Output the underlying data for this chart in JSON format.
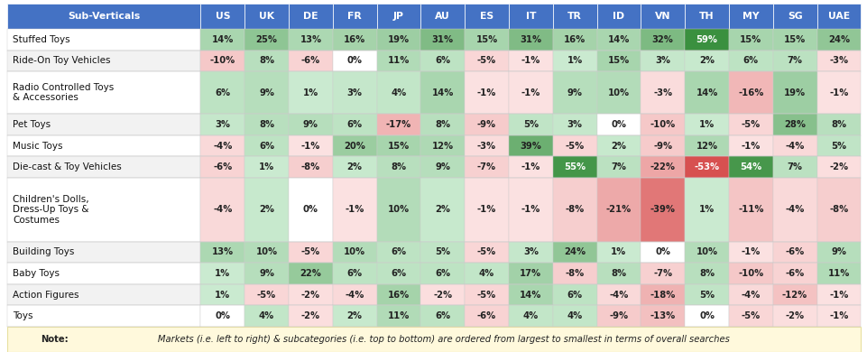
{
  "columns": [
    "Sub-Verticals",
    "US",
    "UK",
    "DE",
    "FR",
    "JP",
    "AU",
    "ES",
    "IT",
    "TR",
    "ID",
    "VN",
    "TH",
    "MY",
    "SG",
    "UAE"
  ],
  "rows": [
    [
      "Stuffed Toys",
      14,
      25,
      13,
      16,
      19,
      31,
      15,
      31,
      16,
      14,
      32,
      59,
      15,
      15,
      24
    ],
    [
      "Ride-On Toy Vehicles",
      -10,
      8,
      -6,
      0,
      11,
      6,
      -5,
      -1,
      1,
      15,
      3,
      2,
      6,
      7,
      -3
    ],
    [
      "Radio Controlled Toys\n& Accessories",
      6,
      9,
      1,
      3,
      4,
      14,
      -1,
      -1,
      9,
      10,
      -3,
      14,
      -16,
      19,
      -1
    ],
    [
      "Pet Toys",
      3,
      8,
      9,
      6,
      -17,
      8,
      -9,
      5,
      3,
      0,
      -10,
      1,
      -5,
      28,
      8
    ],
    [
      "Music Toys",
      -4,
      6,
      -1,
      20,
      15,
      12,
      -3,
      39,
      -5,
      2,
      -9,
      12,
      -1,
      -4,
      5
    ],
    [
      "Die-cast & Toy Vehicles",
      -6,
      1,
      -8,
      2,
      8,
      9,
      -7,
      -1,
      55,
      7,
      -22,
      -53,
      54,
      7,
      -2
    ],
    [
      "Children's Dolls,\nDress-Up Toys &\nCostumes",
      -4,
      2,
      0,
      -1,
      10,
      2,
      -1,
      -1,
      -8,
      -21,
      -39,
      1,
      -11,
      -4,
      -8
    ],
    [
      "Building Toys",
      13,
      10,
      -5,
      10,
      6,
      5,
      -5,
      3,
      24,
      1,
      0,
      10,
      -1,
      -6,
      9
    ],
    [
      "Baby Toys",
      1,
      9,
      22,
      6,
      6,
      6,
      4,
      17,
      -8,
      8,
      -7,
      8,
      -10,
      -6,
      11
    ],
    [
      "Action Figures",
      1,
      -5,
      -2,
      -4,
      16,
      -2,
      -5,
      14,
      6,
      -4,
      -18,
      5,
      -4,
      -12,
      -1
    ],
    [
      "Toys",
      0,
      4,
      -2,
      2,
      11,
      6,
      -6,
      4,
      4,
      -9,
      -13,
      0,
      -5,
      -2,
      -1
    ]
  ],
  "header_bg": "#4472C4",
  "header_text": "#FFFFFF",
  "note_italic": "Markets (i.e. left to right) & subcategories (i.e. top to bottom) are ordered from largest to smallest in terms of overall searches",
  "note_bold": "Note:",
  "note_bg": "#FFF9DC",
  "note_border": "#E8E0A0",
  "grid_color": "#CCCCCC",
  "label_col_bg": "#F0F0F0",
  "row_line_counts": [
    1,
    1,
    2,
    1,
    1,
    1,
    3,
    1,
    1,
    1,
    1
  ],
  "col_widths_rel": [
    2.2,
    0.5,
    0.5,
    0.5,
    0.5,
    0.5,
    0.5,
    0.5,
    0.5,
    0.5,
    0.5,
    0.5,
    0.5,
    0.5,
    0.5,
    0.5
  ],
  "green_max_val": 60,
  "red_max_val": 60,
  "green_light": [
    204,
    236,
    210
  ],
  "green_dark": [
    56,
    142,
    60
  ],
  "red_light": [
    252,
    228,
    228
  ],
  "red_dark": [
    210,
    60,
    60
  ],
  "text_white_threshold": 0.5,
  "header_fontsize": 7.8,
  "cell_fontsize": 7.2,
  "label_fontsize": 7.5,
  "note_fontsize": 7.2
}
